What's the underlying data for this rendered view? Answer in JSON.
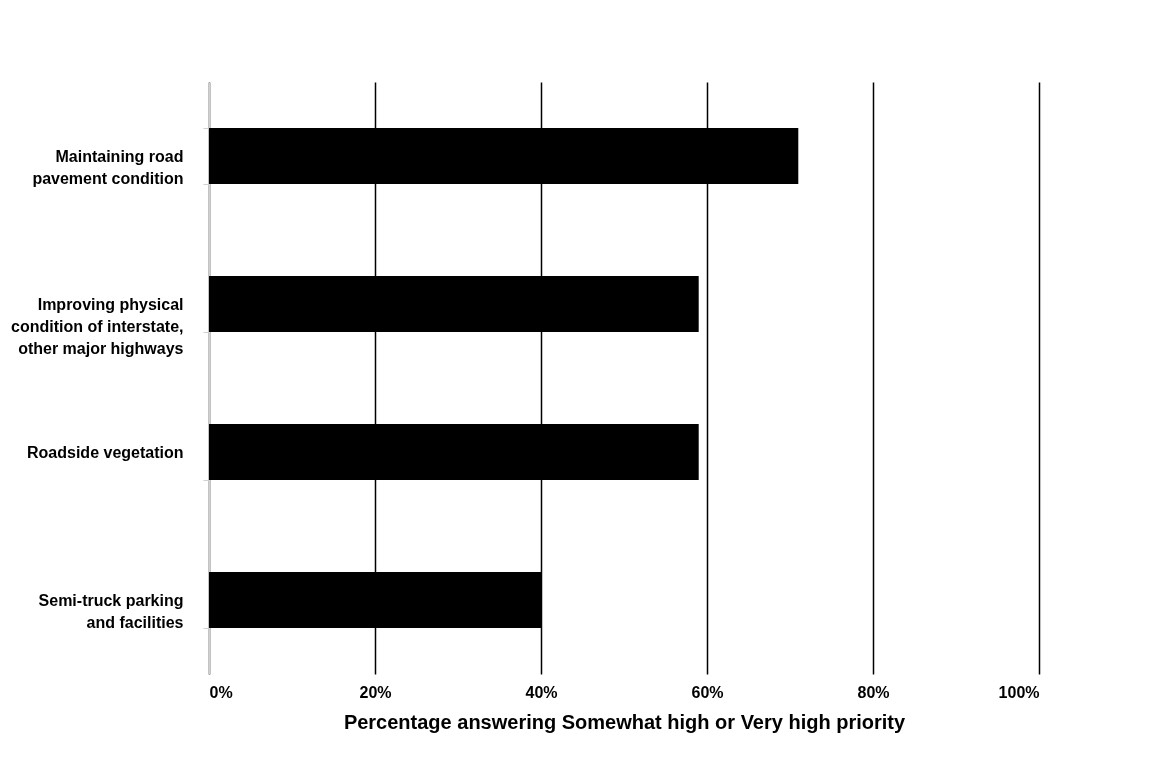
{
  "chart_data": {
    "type": "bar",
    "orientation": "horizontal",
    "categories": [
      "Maintaining road pavement condition",
      "Improving physical condition of interstate, other major highways",
      "Roadside vegetation",
      "Semi-truck parking and facilities"
    ],
    "values": [
      71,
      59,
      59,
      40
    ],
    "color": "#000000",
    "xlabel": "Percentage answering Somewhat high or Very high priority",
    "xlim": [
      0,
      100
    ],
    "xticks": [
      {
        "value": 0,
        "label": "0%"
      },
      {
        "value": 20,
        "label": "20%"
      },
      {
        "value": 40,
        "label": "40%"
      },
      {
        "value": 60,
        "label": "60%"
      },
      {
        "value": 80,
        "label": "80%"
      },
      {
        "value": 100,
        "label": "100%"
      }
    ],
    "grid": "x"
  }
}
